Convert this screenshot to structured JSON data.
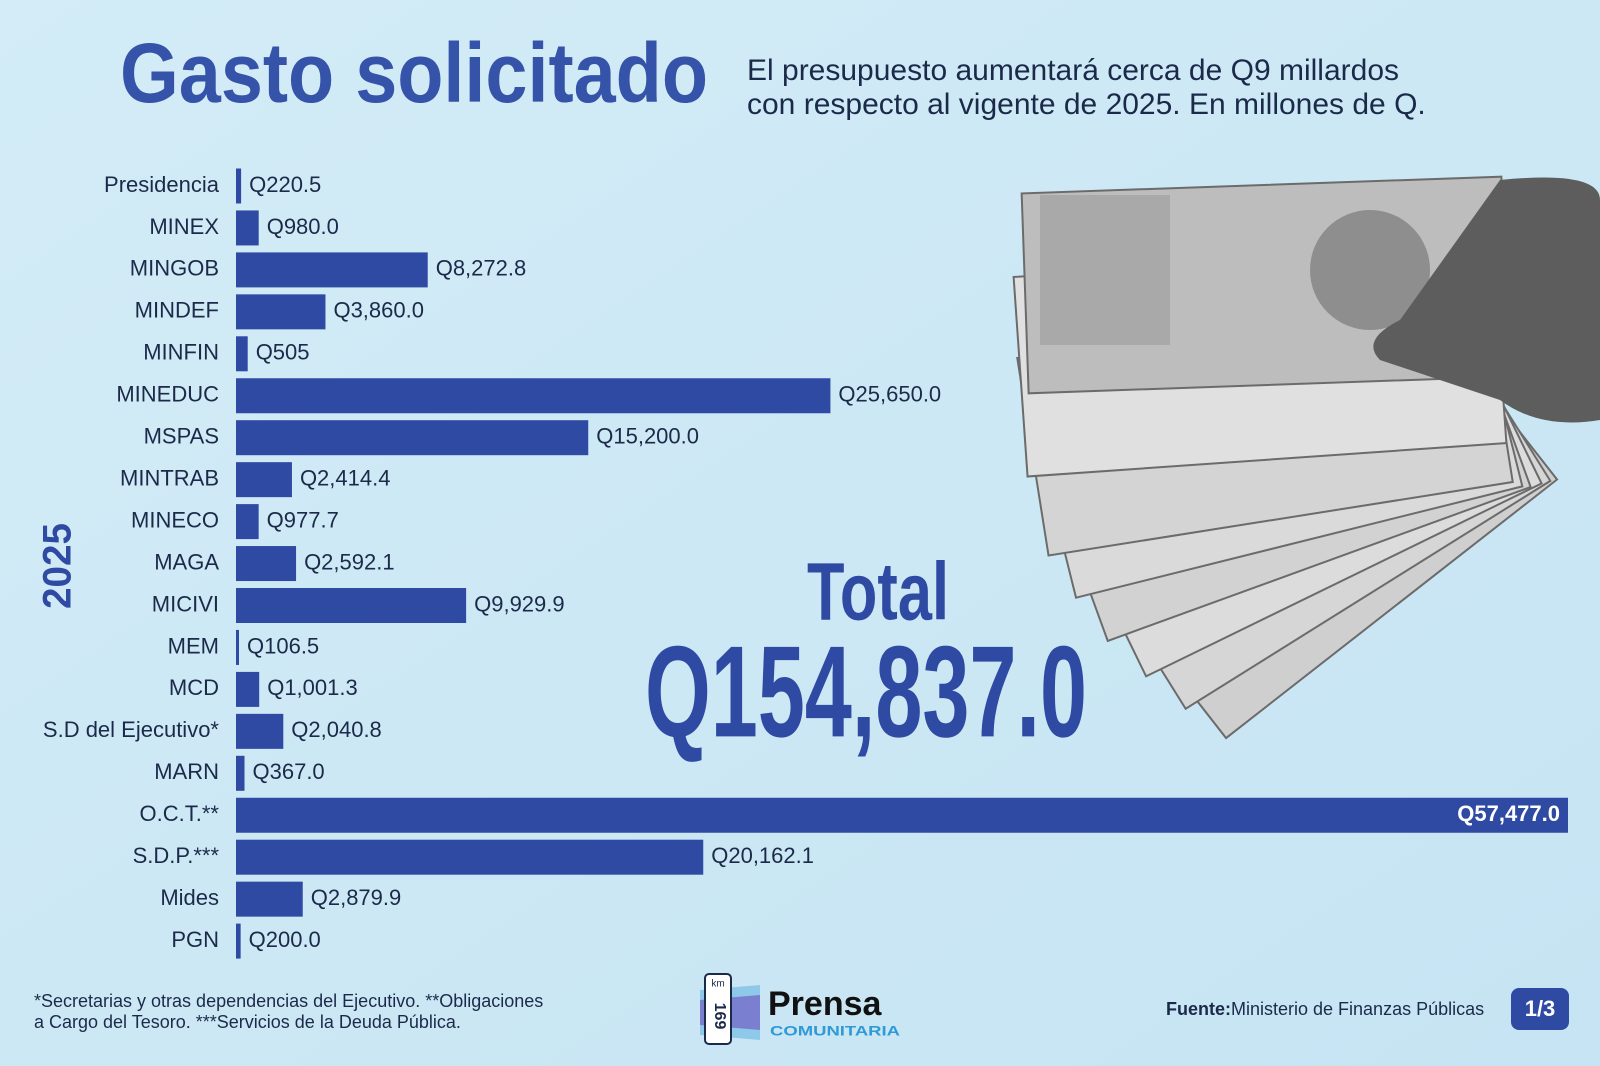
{
  "chart_data": {
    "type": "bar",
    "orientation": "horizontal",
    "title": "Gasto solicitado",
    "subtitle": [
      "El presupuesto aumentará cerca de Q9 millardos",
      "con respecto al vigente de 2025. En millones de Q."
    ],
    "group_label": "2025",
    "categories": [
      "Presidencia",
      "MINEX",
      "MINGOB",
      "MINDEF",
      "MINFIN",
      "MINEDUC",
      "MSPAS",
      "MINTRAB",
      "MINECO",
      "MAGA",
      "MICIVI",
      "MEM",
      "MCD",
      "S.D del Ejecutivo*",
      "MARN",
      "O.C.T.**",
      "S.D.P.***",
      "Mides",
      "PGN"
    ],
    "values": [
      220.5,
      980.0,
      8272.8,
      3860.0,
      505,
      25650.0,
      15200.0,
      2414.4,
      977.7,
      2592.1,
      9929.9,
      106.5,
      1001.3,
      2040.8,
      367.0,
      57477.0,
      20162.1,
      2879.9,
      200.0
    ],
    "value_labels": [
      "Q220.5",
      "Q980.0",
      "Q8,272.8",
      "Q3,860.0",
      "Q505",
      "Q25,650.0",
      "Q15,200.0",
      "Q2,414.4",
      "Q977.7",
      "Q2,592.1",
      "Q9,929.9",
      "Q106.5",
      "Q1,001.3",
      "Q2,040.8",
      "Q367.0",
      "Q57,477.0",
      "Q20,162.1",
      "Q2,879.9",
      "Q200.0"
    ],
    "color": "#2f4aa3",
    "total_title": "Total",
    "total_value": "Q154,837.0",
    "footnote": [
      "*Secretarias y otras dependencias del Ejecutivo. **Obligaciones",
      "a Cargo del Tesoro. ***Servicios de la Deuda Pública."
    ],
    "source_label": "Fuente:",
    "source": "Ministerio de Finanzas Públicas",
    "page": "1/3",
    "logo": {
      "name": "Prensa",
      "tagline": "COMUNITARIA",
      "badge_top": "km",
      "badge_number": "169"
    }
  }
}
